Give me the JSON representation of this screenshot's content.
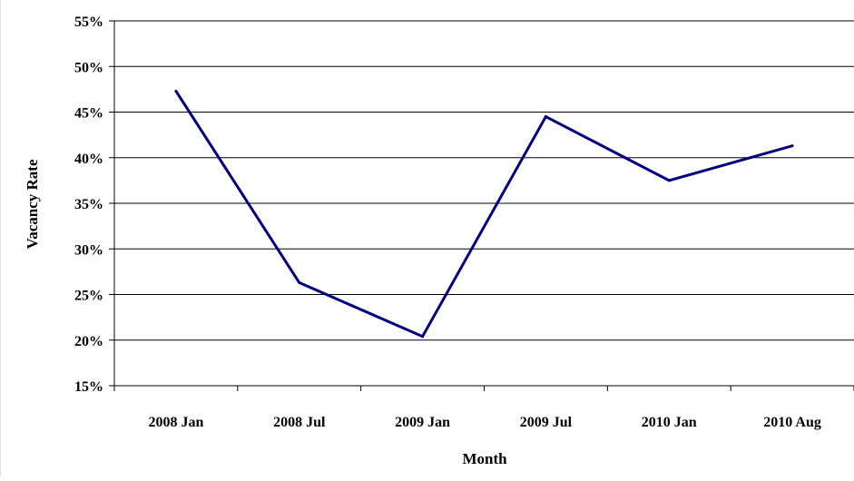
{
  "chart_data": {
    "type": "line",
    "title": "",
    "xlabel": "Month",
    "ylabel": "Vacancy Rate",
    "categories": [
      "2008 Jan",
      "2008 Jul",
      "2009 Jan",
      "2009 Jul",
      "2010 Jan",
      "2010 Aug"
    ],
    "series": [
      {
        "values": [
          47.3,
          26.3,
          20.4,
          44.5,
          37.5,
          41.3
        ],
        "color": "#000080"
      }
    ],
    "ylim": [
      15,
      55
    ],
    "yticks": [
      15,
      20,
      25,
      30,
      35,
      40,
      45,
      50,
      55
    ],
    "ytick_labels": [
      "15%",
      "20%",
      "25%",
      "30%",
      "35%",
      "40%",
      "45%",
      "50%",
      "55%"
    ],
    "grid": true,
    "legend": "none"
  }
}
